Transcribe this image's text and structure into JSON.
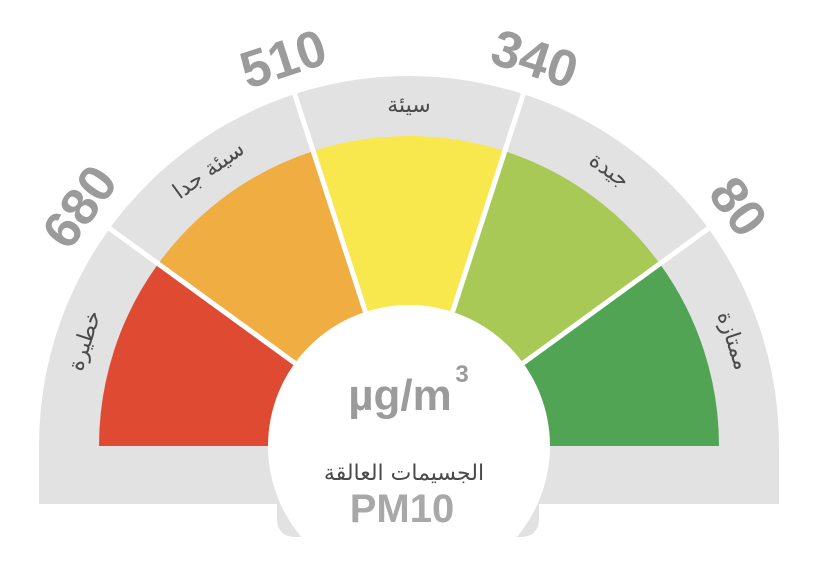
{
  "gauge": {
    "boundaries": [
      "680",
      "510",
      "340",
      "80"
    ],
    "categories": [
      {
        "label": "خطيرة",
        "color": "#df4a33"
      },
      {
        "label": "سيئة جدا",
        "color": "#efad42"
      },
      {
        "label": "سيئة",
        "color": "#f8e84d"
      },
      {
        "label": "جيدة",
        "color": "#a9c956"
      },
      {
        "label": "ممتازة",
        "color": "#52a455"
      }
    ],
    "unit": "µg/m",
    "unit_sup": "3",
    "caption": "الجسيمات العالقة",
    "pollutant": "PM10",
    "band_color": "#e2e2e2"
  }
}
